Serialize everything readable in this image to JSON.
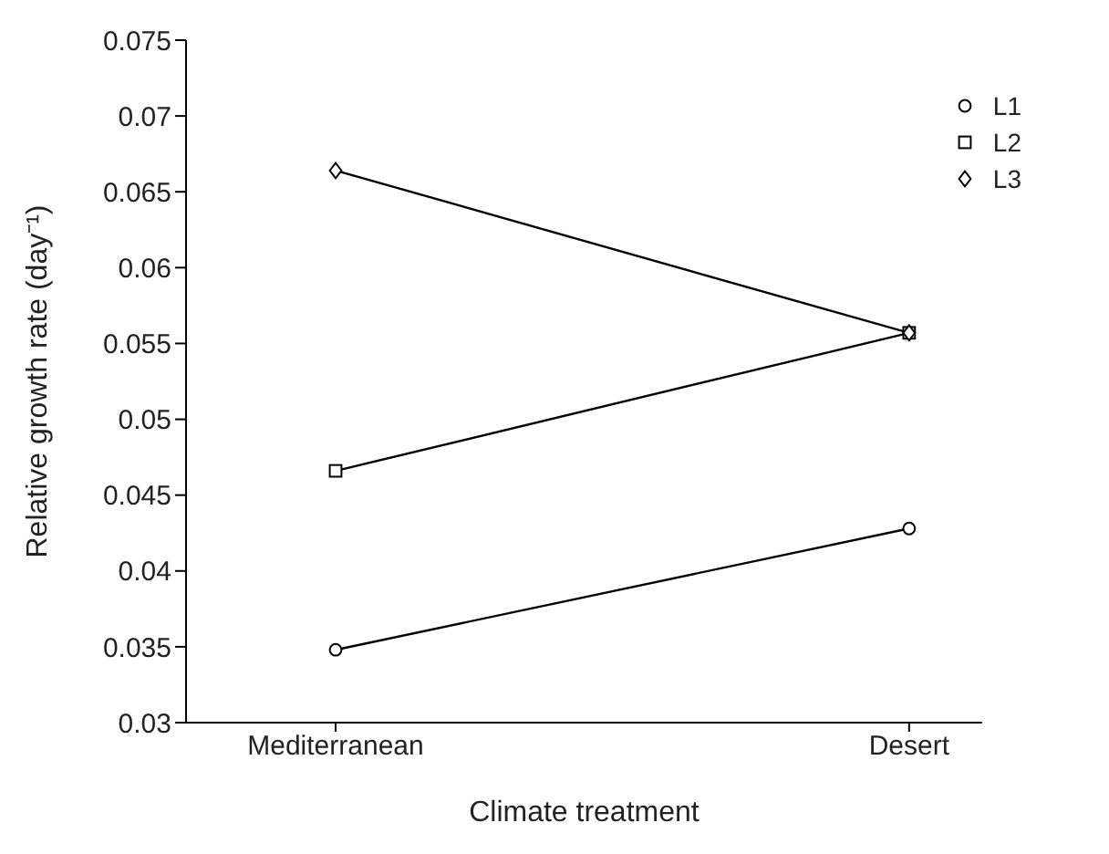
{
  "chart_data": {
    "type": "line",
    "xlabel": "Climate treatment",
    "ylabel": "Relative growth rate (day⁻¹)",
    "categories": [
      "Mediterranean",
      "Desert"
    ],
    "series": [
      {
        "name": "L1",
        "color": "#000000",
        "marker": "circle",
        "values": [
          0.0348,
          0.0428
        ]
      },
      {
        "name": "L2",
        "color": "#000000",
        "marker": "square",
        "values": [
          0.0466,
          0.0557
        ]
      },
      {
        "name": "L3",
        "color": "#000000",
        "marker": "diamond",
        "values": [
          0.0664,
          0.0557
        ]
      }
    ],
    "ylim": [
      0.03,
      0.075
    ],
    "yticks": [
      0.03,
      0.035,
      0.04,
      0.045,
      0.05,
      0.055,
      0.06,
      0.065,
      0.07,
      0.075
    ],
    "grid": false,
    "legend": "top right",
    "line_style": "solid"
  }
}
